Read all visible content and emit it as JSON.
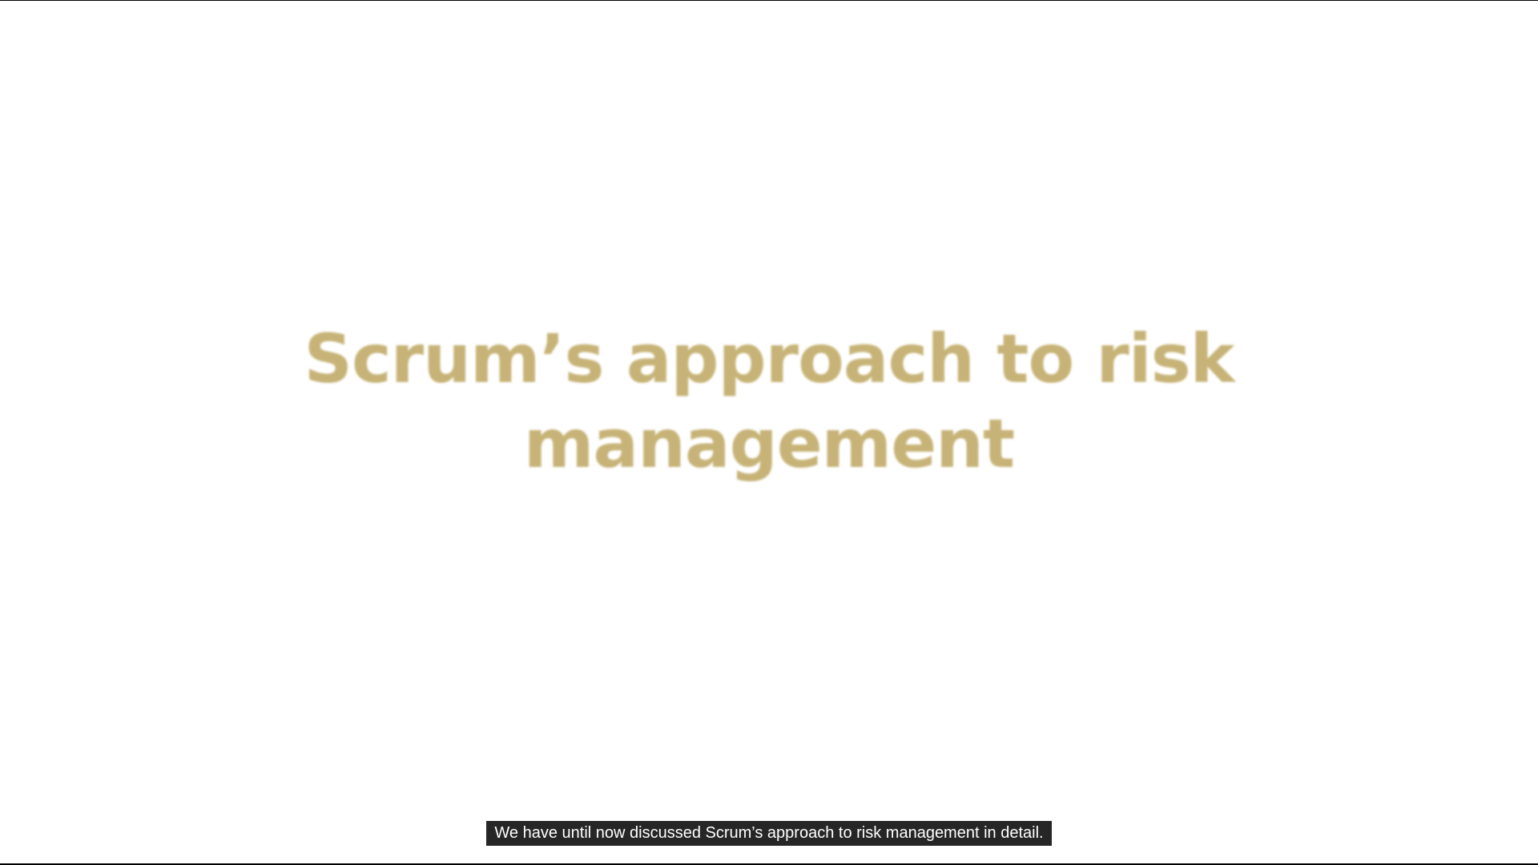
{
  "slide": {
    "title_line1": "Scrum’s approach to risk",
    "title_line2": "management",
    "title_color": "#c7b377"
  },
  "captions": {
    "text": "We have until now discussed Scrum’s approach to risk management in detail.",
    "background": "#262626",
    "color": "#ffffff"
  },
  "frame": {
    "background": "#ffffff",
    "letterbox_color": "#000000"
  }
}
